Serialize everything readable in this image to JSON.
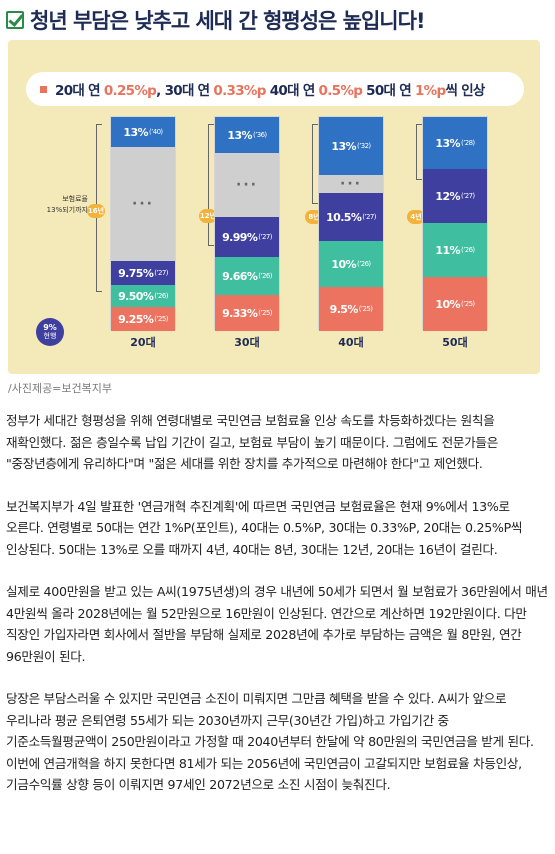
{
  "headline": "청년 부담은 낮추고 세대 간 형평성은 높입니다!",
  "infographic": {
    "legend_parts": [
      "20대 연 ",
      "0.25%p",
      ", 30대 연 ",
      "0.33%p",
      " 40대 연 ",
      "0.5%p",
      " 50대 연 ",
      "1%p",
      "씩 인상"
    ],
    "side_label": "보험료율\n13%되기까지",
    "current_badge": {
      "value": "9%",
      "label": "현행"
    },
    "columns": [
      {
        "label": "20대",
        "years": "16년",
        "segments": [
          "13%",
          "(’40)",
          "9.75%",
          "(’27)",
          "9.50%",
          "(’26)",
          "9.25%",
          "(’25)"
        ]
      },
      {
        "label": "30대",
        "years": "12년",
        "segments": [
          "13%",
          "(’36)",
          "9.99%",
          "(’27)",
          "9.66%",
          "(’26)",
          "9.33%",
          "(’25)"
        ]
      },
      {
        "label": "40대",
        "years": "8년",
        "segments": [
          "13%",
          "(’32)",
          "10.5%",
          "(’27)",
          "10%",
          "(’26)",
          "9.5%",
          "(’25)"
        ]
      },
      {
        "label": "50대",
        "years": "4년",
        "segments": [
          "13%",
          "(’28)",
          "12%",
          "(’27)",
          "11%",
          "(’26)",
          "10%",
          "(’25)"
        ]
      }
    ]
  },
  "caption": "/사진제공=보건복지부",
  "article": [
    "정부가 세대간 형평성을 위해 연령대별로 국민연금 보험료율 인상 속도를 차등화하겠다는 원칙을 재확인했다. 젊은 층일수록 납입 기간이 길고, 보험료 부담이 높기 때문이다. 그럼에도 전문가들은 \"중장년층에게 유리하다\"며 \"젊은 세대를 위한 장치를 추가적으로 마련해야 한다\"고 제언했다.",
    "보건복지부가 4일 발표한 '연금개혁 추진계획'에 따르면 국민연금 보험료율은 현재 9%에서 13%로 오른다. 연령별로 50대는 연간 1%P(포인트), 40대는 0.5%P, 30대는 0.33%P, 20대는 0.25%P씩 인상된다. 50대는 13%로 오를 때까지 4년, 40대는 8년, 30대는 12년, 20대는 16년이 걸린다.",
    "실제로 400만원을 받고 있는 A씨(1975년생)의 경우 내년에 50세가 되면서 월 보험료가 36만원에서 매년 4만원씩 올라 2028년에는 월 52만원으로 16만원이 인상된다. 연간으로 계산하면 192만원이다. 다만 직장인 가입자라면 회사에서 절반을 부담해 실제로 2028년에 추가로 부담하는 금액은 월 8만원, 연간 96만원이 된다.",
    "당장은 부담스러울 수 있지만 국민연금 소진이 미뤄지면 그만큼 혜택을 받을 수 있다. A씨가 앞으로 우리나라 평균 은퇴연령 55세가 되는 2030년까지 근무(30년간 가입)하고 가입기간 중 기준소득월평균액이 250만원이라고 가정할 때 2040년부터 한달에 약 80만원의 국민연금을 받게 된다. 이번에 연금개혁을 하지 못한다면 81세가 되는 2056년에 국민연금이 고갈되지만 보험료율 차등인상, 기금수익률 상향 등이 이뤄지면 97세인 2072년으로 소진 시점이 늦춰진다."
  ]
}
